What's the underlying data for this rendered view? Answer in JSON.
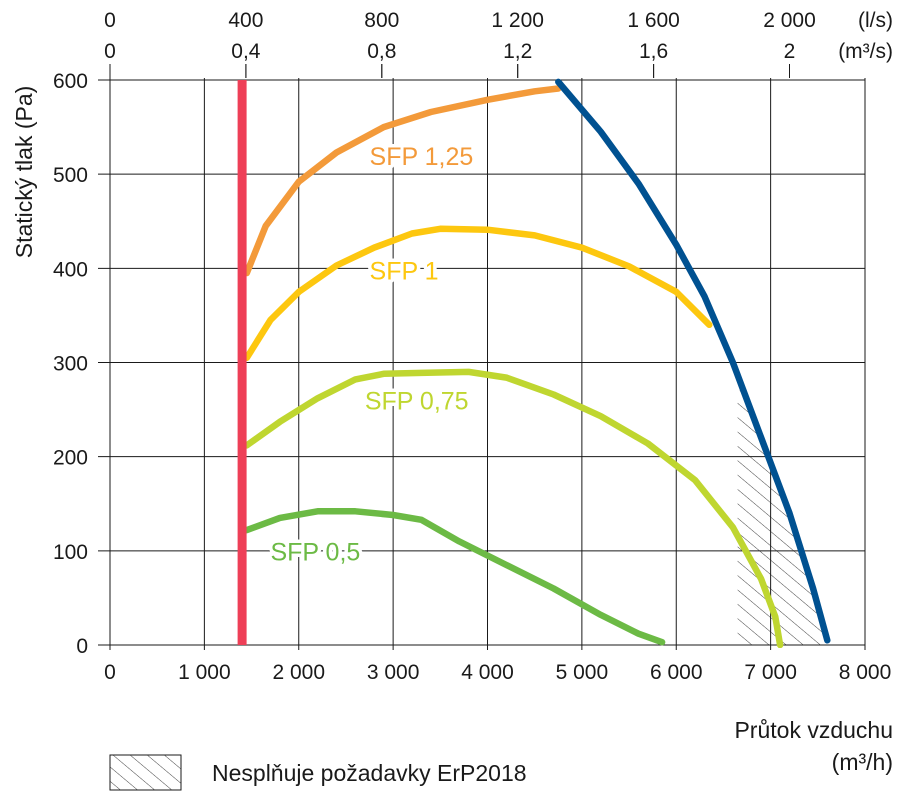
{
  "chart_data": {
    "type": "line",
    "xlabel": "Průtok vzduchu",
    "xunit": "(m³/h)",
    "ylabel": "Statický tlak (Pa)",
    "xlim": [
      0,
      8000
    ],
    "ylim": [
      0,
      600
    ],
    "grid": true,
    "x_ticks": [
      0,
      1000,
      2000,
      3000,
      4000,
      5000,
      6000,
      7000,
      8000
    ],
    "x_tick_labels": [
      "0",
      "1 000",
      "2 000",
      "3 000",
      "4 000",
      "5 000",
      "6 000",
      "7 000",
      "8 000"
    ],
    "y_ticks": [
      0,
      100,
      200,
      300,
      400,
      500,
      600
    ],
    "y_tick_labels": [
      "0",
      "100",
      "200",
      "300",
      "400",
      "500",
      "600"
    ],
    "top_axis_ls": {
      "unit": "(l/s)",
      "ticks": [
        0,
        400,
        800,
        1200,
        1600,
        2000
      ],
      "labels": [
        "0",
        "400",
        "800",
        "1 200",
        "1 600",
        "2 000"
      ]
    },
    "top_axis_m3s": {
      "unit": "(m³/s)",
      "ticks": [
        0,
        0.4,
        0.8,
        1.2,
        1.6,
        2
      ],
      "labels": [
        "0",
        "0,4",
        "0,8",
        "1,2",
        "1,6",
        "2"
      ]
    },
    "series": [
      {
        "name": "SFP 1,25",
        "color": "#f39a3a",
        "x": [
          1450,
          1650,
          2000,
          2400,
          2900,
          3400,
          4000,
          4500,
          4750
        ],
        "y": [
          395,
          445,
          492,
          523,
          550,
          566,
          579,
          588,
          591
        ]
      },
      {
        "name": "SFP 1",
        "color": "#fdc70f",
        "x": [
          1450,
          1700,
          2000,
          2400,
          2800,
          3200,
          3500,
          4000,
          4500,
          5000,
          5500,
          6000,
          6350
        ],
        "y": [
          305,
          345,
          375,
          403,
          422,
          437,
          442,
          441,
          435,
          422,
          402,
          375,
          340
        ]
      },
      {
        "name": "SFP 0,75",
        "color": "#bfd630",
        "x": [
          1450,
          1800,
          2200,
          2600,
          2900,
          3300,
          3800,
          4200,
          4700,
          5200,
          5700,
          6200,
          6600,
          6900,
          7050,
          7100
        ],
        "y": [
          212,
          237,
          262,
          282,
          288,
          289,
          290,
          284,
          266,
          243,
          214,
          175,
          125,
          70,
          30,
          0
        ]
      },
      {
        "name": "SFP 0,5",
        "color": "#6cba45",
        "x": [
          1450,
          1800,
          2200,
          2600,
          3000,
          3300,
          3700,
          4200,
          4700,
          5200,
          5600,
          5850
        ],
        "y": [
          122,
          135,
          142,
          142,
          138,
          133,
          110,
          85,
          60,
          32,
          12,
          3
        ]
      },
      {
        "name": "",
        "color": "#005191",
        "x": [
          4750,
          5200,
          5600,
          6000,
          6300,
          6600,
          6900,
          7200,
          7450,
          7600
        ],
        "y": [
          598,
          545,
          490,
          425,
          370,
          300,
          220,
          140,
          60,
          5
        ]
      },
      {
        "name": "",
        "color": "#ee3f57",
        "x": [
          1400,
          1400
        ],
        "y": [
          0,
          600
        ]
      }
    ],
    "hatched_region_x": [
      6650,
      6650,
      6700,
      6800,
      6900,
      7000,
      7100,
      7200,
      7300,
      7450,
      7600
    ],
    "hatched_region_y_top": [
      0,
      270,
      270,
      248,
      222,
      197,
      170,
      142,
      112,
      60,
      5
    ],
    "annotations": [
      {
        "text": "SFP 1,25",
        "x": 2750,
        "y": 510,
        "color": "#f39a3a"
      },
      {
        "text": "SFP 1",
        "x": 2750,
        "y": 388,
        "color": "#fdc70f"
      },
      {
        "text": "SFP 0,75",
        "x": 2700,
        "y": 250,
        "color": "#bfd630"
      },
      {
        "text": "SFP 0,5",
        "x": 1700,
        "y": 90,
        "color": "#6cba45"
      }
    ],
    "legend": {
      "label": "Nesplňuje požadavky ErP2018",
      "position": "bottom-left"
    }
  }
}
